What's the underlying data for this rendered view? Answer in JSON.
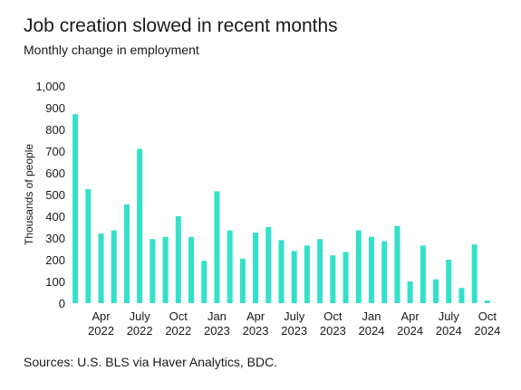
{
  "chart_data": {
    "type": "bar",
    "title": "Job creation slowed in recent months",
    "subtitle": "Monthly change in employment",
    "y_label": "Thousands of people",
    "source": "Sources: U.S. BLS via Haver Analytics, BDC.",
    "categories": [
      null,
      null,
      "Apr 2022",
      null,
      null,
      "July 2022",
      null,
      null,
      "Oct 2022",
      null,
      null,
      "Jan 2023",
      null,
      null,
      "Apr 2023",
      null,
      null,
      "July 2023",
      null,
      null,
      "Oct 2023",
      null,
      null,
      "Jan 2024",
      null,
      null,
      "Apr 2024",
      null,
      null,
      "July 2024",
      null,
      null,
      "Oct 2024"
    ],
    "values": [
      870,
      525,
      320,
      335,
      455,
      710,
      295,
      305,
      400,
      305,
      195,
      515,
      335,
      205,
      325,
      350,
      290,
      240,
      265,
      295,
      220,
      235,
      335,
      305,
      285,
      355,
      100,
      265,
      110,
      200,
      70,
      270,
      12
    ],
    "color": "#33e0c9",
    "ylim": [
      0,
      1000
    ],
    "yticks": [
      0,
      100,
      200,
      300,
      400,
      500,
      600,
      700,
      800,
      900,
      {
        "value": 1000,
        "label": "1,000"
      }
    ],
    "grid": false
  }
}
